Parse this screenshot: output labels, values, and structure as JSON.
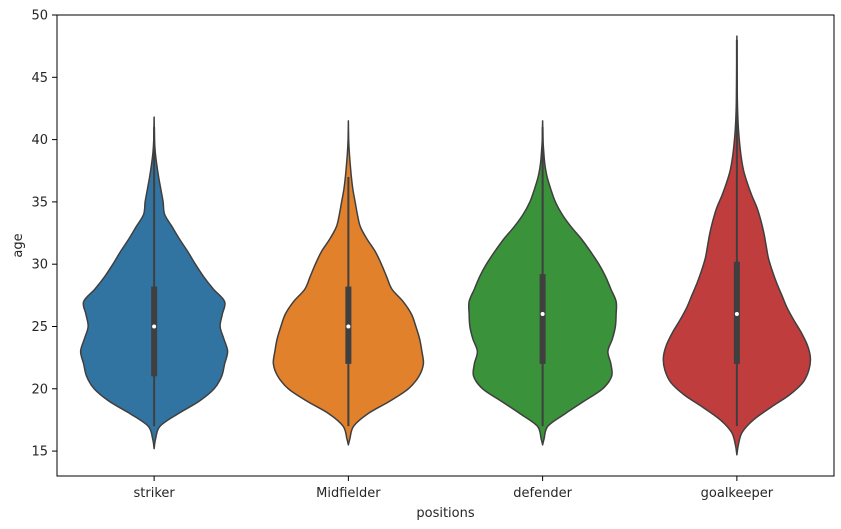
{
  "chart_data": {
    "type": "violin",
    "title": "",
    "xlabel": "positions",
    "ylabel": "age",
    "ylim": [
      13,
      50
    ],
    "yticks": [
      15,
      20,
      25,
      30,
      35,
      40,
      45,
      50
    ],
    "grid": false,
    "categories": [
      "striker",
      "Midfielder",
      "defender",
      "goalkeeper"
    ],
    "series": [
      {
        "category": "striker",
        "color": "#3274a1",
        "min": 17,
        "q1": 21,
        "median": 25,
        "q3": 28.2,
        "max": 41,
        "density_profile": [
          [
            15.2,
            0
          ],
          [
            16,
            0.02
          ],
          [
            17,
            0.08
          ],
          [
            18,
            0.32
          ],
          [
            19,
            0.6
          ],
          [
            20,
            0.8
          ],
          [
            21,
            0.9
          ],
          [
            22,
            0.94
          ],
          [
            23,
            0.98
          ],
          [
            24,
            0.93
          ],
          [
            25,
            0.88
          ],
          [
            26,
            0.91
          ],
          [
            27,
            0.94
          ],
          [
            28,
            0.79
          ],
          [
            29,
            0.66
          ],
          [
            30,
            0.55
          ],
          [
            31,
            0.45
          ],
          [
            32,
            0.34
          ],
          [
            33,
            0.24
          ],
          [
            34,
            0.14
          ],
          [
            35,
            0.12
          ],
          [
            36,
            0.09
          ],
          [
            37,
            0.06
          ],
          [
            38,
            0.035
          ],
          [
            39,
            0.015
          ],
          [
            40,
            0.005
          ],
          [
            41.8,
            0
          ]
        ]
      },
      {
        "category": "Midfielder",
        "color": "#e1812c",
        "min": 17,
        "q1": 22,
        "median": 25,
        "q3": 28.2,
        "max": 37,
        "density_profile": [
          [
            15.5,
            0
          ],
          [
            16,
            0.02
          ],
          [
            17,
            0.07
          ],
          [
            18,
            0.26
          ],
          [
            19,
            0.55
          ],
          [
            20,
            0.8
          ],
          [
            21,
            0.94
          ],
          [
            22,
            1.0
          ],
          [
            23,
            0.98
          ],
          [
            24,
            0.95
          ],
          [
            25,
            0.9
          ],
          [
            26,
            0.84
          ],
          [
            27,
            0.73
          ],
          [
            28,
            0.58
          ],
          [
            29,
            0.51
          ],
          [
            30,
            0.44
          ],
          [
            31,
            0.36
          ],
          [
            32,
            0.25
          ],
          [
            33,
            0.16
          ],
          [
            34,
            0.12
          ],
          [
            35,
            0.09
          ],
          [
            36,
            0.06
          ],
          [
            37,
            0.04
          ],
          [
            38,
            0.025
          ],
          [
            39,
            0.012
          ],
          [
            40,
            0.004
          ],
          [
            41.5,
            0
          ]
        ]
      },
      {
        "category": "defender",
        "color": "#3a923a",
        "min": 17,
        "q1": 22,
        "median": 26,
        "q3": 29.2,
        "max": 41,
        "density_profile": [
          [
            15.5,
            0
          ],
          [
            16,
            0.02
          ],
          [
            17,
            0.07
          ],
          [
            18,
            0.3
          ],
          [
            19,
            0.55
          ],
          [
            20,
            0.8
          ],
          [
            21,
            0.92
          ],
          [
            22,
            0.91
          ],
          [
            23,
            0.87
          ],
          [
            24,
            0.93
          ],
          [
            25,
            0.97
          ],
          [
            26,
            0.98
          ],
          [
            27,
            0.98
          ],
          [
            28,
            0.91
          ],
          [
            29,
            0.84
          ],
          [
            30,
            0.75
          ],
          [
            31,
            0.64
          ],
          [
            32,
            0.52
          ],
          [
            33,
            0.38
          ],
          [
            34,
            0.26
          ],
          [
            35,
            0.17
          ],
          [
            36,
            0.11
          ],
          [
            37,
            0.06
          ],
          [
            38,
            0.03
          ],
          [
            39,
            0.015
          ],
          [
            40,
            0.005
          ],
          [
            41.5,
            0
          ]
        ]
      },
      {
        "category": "goalkeeper",
        "color": "#c03d3e",
        "min": 17,
        "q1": 22,
        "median": 26,
        "q3": 30.2,
        "max": 48,
        "density_profile": [
          [
            14.7,
            0
          ],
          [
            15.5,
            0.02
          ],
          [
            16.5,
            0.07
          ],
          [
            17.5,
            0.22
          ],
          [
            18.5,
            0.45
          ],
          [
            19.5,
            0.7
          ],
          [
            20.5,
            0.88
          ],
          [
            21.5,
            0.96
          ],
          [
            22.5,
            0.98
          ],
          [
            23.5,
            0.94
          ],
          [
            24.5,
            0.86
          ],
          [
            25.5,
            0.76
          ],
          [
            26.5,
            0.67
          ],
          [
            27.5,
            0.6
          ],
          [
            28.5,
            0.53
          ],
          [
            29.5,
            0.47
          ],
          [
            30.5,
            0.42
          ],
          [
            31.5,
            0.39
          ],
          [
            32.5,
            0.36
          ],
          [
            33.5,
            0.32
          ],
          [
            34.5,
            0.27
          ],
          [
            35.5,
            0.2
          ],
          [
            36.5,
            0.14
          ],
          [
            37.5,
            0.09
          ],
          [
            38.5,
            0.06
          ],
          [
            39.5,
            0.04
          ],
          [
            40.5,
            0.025
          ],
          [
            41.5,
            0.015
          ],
          [
            43,
            0.007
          ],
          [
            45,
            0.003
          ],
          [
            48.3,
            0
          ]
        ]
      }
    ]
  }
}
